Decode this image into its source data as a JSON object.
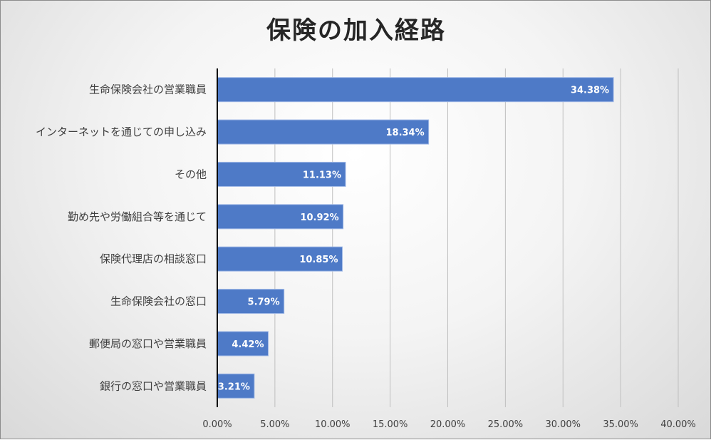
{
  "chart_data": {
    "type": "bar",
    "orientation": "horizontal",
    "title": "保険の加入経路",
    "categories": [
      "生命保険会社の営業職員",
      "インターネットを通じての申し込み",
      "その他",
      "勤め先や労働組合等を通じて",
      "保険代理店の相談窓口",
      "生命保険会社の窓口",
      "郵便局の窓口や営業職員",
      "銀行の窓口や営業職員"
    ],
    "values": [
      34.38,
      18.34,
      11.13,
      10.92,
      10.85,
      5.79,
      4.42,
      3.21
    ],
    "data_labels": [
      "34.38%",
      "18.34%",
      "11.13%",
      "10.92%",
      "10.85%",
      "5.79%",
      "4.42%",
      "3.21%"
    ],
    "x_ticks": [
      0,
      5,
      10,
      15,
      20,
      25,
      30,
      35,
      40
    ],
    "x_tick_labels": [
      "0.00%",
      "5.00%",
      "10.00%",
      "15.00%",
      "20.00%",
      "25.00%",
      "30.00%",
      "35.00%",
      "40.00%"
    ],
    "xlim": [
      0,
      40
    ],
    "grid": true,
    "legend": "none",
    "bar_color": "#4e7ac7",
    "bar_border_color": "#9fb8e6",
    "gridline_color": "#bfbfbf"
  }
}
